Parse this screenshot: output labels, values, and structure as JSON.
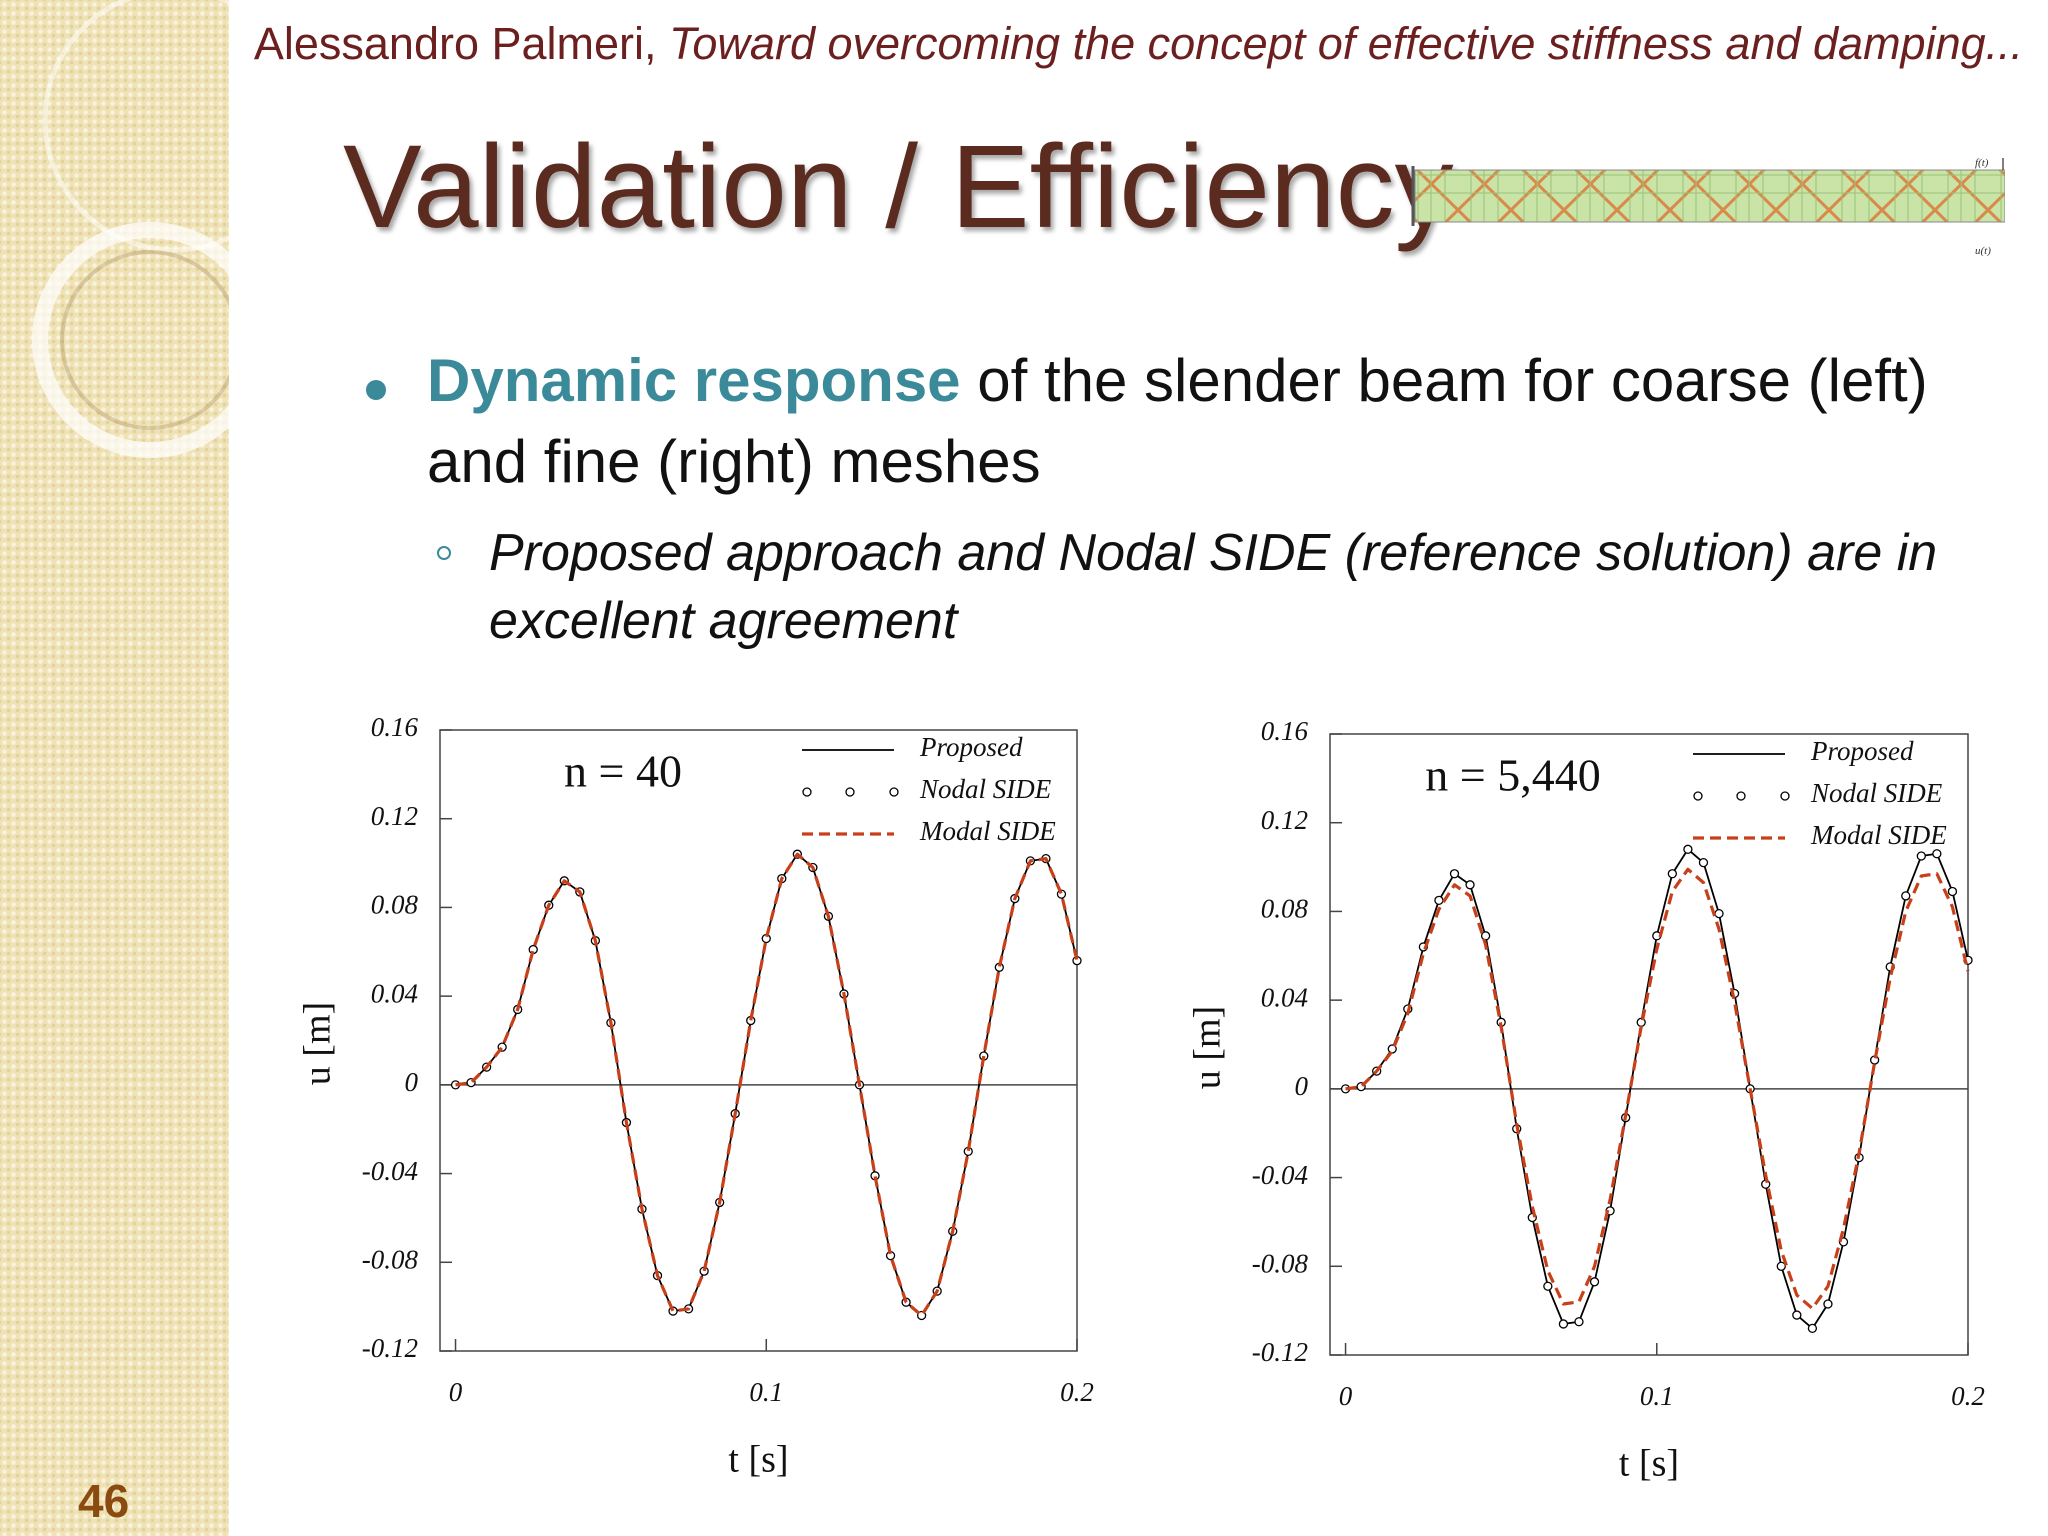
{
  "header": {
    "author": "Alessandro Palmeri,",
    "paper_title": "Toward overcoming the concept of effective stiffness and damping..."
  },
  "title": "Validation / Efficiency",
  "beam_figure": {
    "force_label": "f(t)",
    "displacement_label": "u(t)"
  },
  "bullet": {
    "highlight": "Dynamic response",
    "text": "of the slender beam for coarse (left) and fine (right) meshes"
  },
  "sub_bullet": "Proposed approach and Nodal SIDE (reference solution) are in excellent agreement",
  "slide_number": "46",
  "chart_data": [
    {
      "type": "line",
      "annotation": "n = 40",
      "xlabel": "t [s]",
      "ylabel": "u [m]",
      "xlim": [
        -0.005,
        0.2
      ],
      "ylim": [
        -0.12,
        0.16
      ],
      "xticks": [
        0,
        0.1,
        0.2
      ],
      "yticks": [
        -0.12,
        -0.08,
        -0.04,
        0,
        0.04,
        0.08,
        0.12,
        0.16
      ],
      "legend": "upper right",
      "zero_line": true,
      "x": [
        0,
        0.005,
        0.01,
        0.015,
        0.02,
        0.025,
        0.03,
        0.035,
        0.04,
        0.045,
        0.05,
        0.055,
        0.06,
        0.065,
        0.07,
        0.075,
        0.08,
        0.085,
        0.09,
        0.095,
        0.1,
        0.105,
        0.11,
        0.115,
        0.12,
        0.125,
        0.13,
        0.135,
        0.14,
        0.145,
        0.15,
        0.155,
        0.16,
        0.165,
        0.17,
        0.175,
        0.18,
        0.185,
        0.19,
        0.195,
        0.2
      ],
      "series": [
        {
          "name": "Proposed",
          "color": "#000000",
          "style": "solid",
          "values": [
            0,
            0.001,
            0.008,
            0.017,
            0.034,
            0.061,
            0.081,
            0.092,
            0.087,
            0.065,
            0.028,
            -0.017,
            -0.056,
            -0.086,
            -0.102,
            -0.101,
            -0.084,
            -0.053,
            -0.013,
            0.029,
            0.066,
            0.093,
            0.104,
            0.098,
            0.076,
            0.041,
            0,
            -0.041,
            -0.077,
            -0.098,
            -0.104,
            -0.093,
            -0.066,
            -0.03,
            0.013,
            0.053,
            0.084,
            0.101,
            0.102,
            0.086,
            0.056
          ]
        },
        {
          "name": "Nodal SIDE",
          "color": "#000000",
          "style": "markers",
          "values": [
            0,
            0.001,
            0.008,
            0.017,
            0.034,
            0.061,
            0.081,
            0.092,
            0.087,
            0.065,
            0.028,
            -0.017,
            -0.056,
            -0.086,
            -0.102,
            -0.101,
            -0.084,
            -0.053,
            -0.013,
            0.029,
            0.066,
            0.093,
            0.104,
            0.098,
            0.076,
            0.041,
            0,
            -0.041,
            -0.077,
            -0.098,
            -0.104,
            -0.093,
            -0.066,
            -0.03,
            0.013,
            0.053,
            0.084,
            0.101,
            0.102,
            0.086,
            0.056
          ]
        },
        {
          "name": "Modal SIDE",
          "color": "#c8401a",
          "style": "dashed",
          "values": [
            0,
            0.001,
            0.008,
            0.017,
            0.034,
            0.061,
            0.081,
            0.092,
            0.087,
            0.065,
            0.028,
            -0.017,
            -0.056,
            -0.086,
            -0.102,
            -0.101,
            -0.084,
            -0.053,
            -0.013,
            0.029,
            0.066,
            0.093,
            0.104,
            0.098,
            0.076,
            0.041,
            0,
            -0.041,
            -0.077,
            -0.098,
            -0.104,
            -0.093,
            -0.066,
            -0.03,
            0.013,
            0.053,
            0.084,
            0.101,
            0.102,
            0.086,
            0.056
          ]
        }
      ]
    },
    {
      "type": "line",
      "annotation": "n = 5,440",
      "xlabel": "t [s]",
      "ylabel": "u [m]",
      "xlim": [
        -0.005,
        0.2
      ],
      "ylim": [
        -0.12,
        0.16
      ],
      "xticks": [
        0,
        0.1,
        0.2
      ],
      "yticks": [
        -0.12,
        -0.08,
        -0.04,
        0,
        0.04,
        0.08,
        0.12,
        0.16
      ],
      "legend": "upper right",
      "zero_line": true,
      "x": [
        0,
        0.005,
        0.01,
        0.015,
        0.02,
        0.025,
        0.03,
        0.035,
        0.04,
        0.045,
        0.05,
        0.055,
        0.06,
        0.065,
        0.07,
        0.075,
        0.08,
        0.085,
        0.09,
        0.095,
        0.1,
        0.105,
        0.11,
        0.115,
        0.12,
        0.125,
        0.13,
        0.135,
        0.14,
        0.145,
        0.15,
        0.155,
        0.16,
        0.165,
        0.17,
        0.175,
        0.18,
        0.185,
        0.19,
        0.195,
        0.2
      ],
      "series": [
        {
          "name": "Proposed",
          "color": "#000000",
          "style": "solid",
          "values": [
            0,
            0.001,
            0.008,
            0.018,
            0.036,
            0.064,
            0.085,
            0.097,
            0.092,
            0.069,
            0.03,
            -0.018,
            -0.058,
            -0.089,
            -0.106,
            -0.105,
            -0.087,
            -0.055,
            -0.013,
            0.03,
            0.069,
            0.097,
            0.108,
            0.102,
            0.079,
            0.043,
            0,
            -0.043,
            -0.08,
            -0.102,
            -0.108,
            -0.097,
            -0.069,
            -0.031,
            0.013,
            0.055,
            0.087,
            0.105,
            0.106,
            0.089,
            0.058
          ]
        },
        {
          "name": "Nodal SIDE",
          "color": "#000000",
          "style": "markers",
          "values": [
            0,
            0.001,
            0.008,
            0.018,
            0.036,
            0.064,
            0.085,
            0.097,
            0.092,
            0.069,
            0.03,
            -0.018,
            -0.058,
            -0.089,
            -0.106,
            -0.105,
            -0.087,
            -0.055,
            -0.013,
            0.03,
            0.069,
            0.097,
            0.108,
            0.102,
            0.079,
            0.043,
            0,
            -0.043,
            -0.08,
            -0.102,
            -0.108,
            -0.097,
            -0.069,
            -0.031,
            0.013,
            0.055,
            0.087,
            0.105,
            0.106,
            0.089,
            0.058
          ]
        },
        {
          "name": "Modal SIDE",
          "color": "#c8401a",
          "style": "dashed",
          "values": [
            0,
            0.001,
            0.008,
            0.017,
            0.034,
            0.061,
            0.081,
            0.092,
            0.087,
            0.065,
            0.028,
            -0.016,
            -0.053,
            -0.082,
            -0.097,
            -0.096,
            -0.08,
            -0.05,
            -0.012,
            0.028,
            0.063,
            0.089,
            0.099,
            0.093,
            0.072,
            0.039,
            0,
            -0.039,
            -0.073,
            -0.093,
            -0.099,
            -0.089,
            -0.063,
            -0.029,
            0.012,
            0.05,
            0.08,
            0.096,
            0.097,
            0.082,
            0.053
          ]
        }
      ]
    }
  ]
}
